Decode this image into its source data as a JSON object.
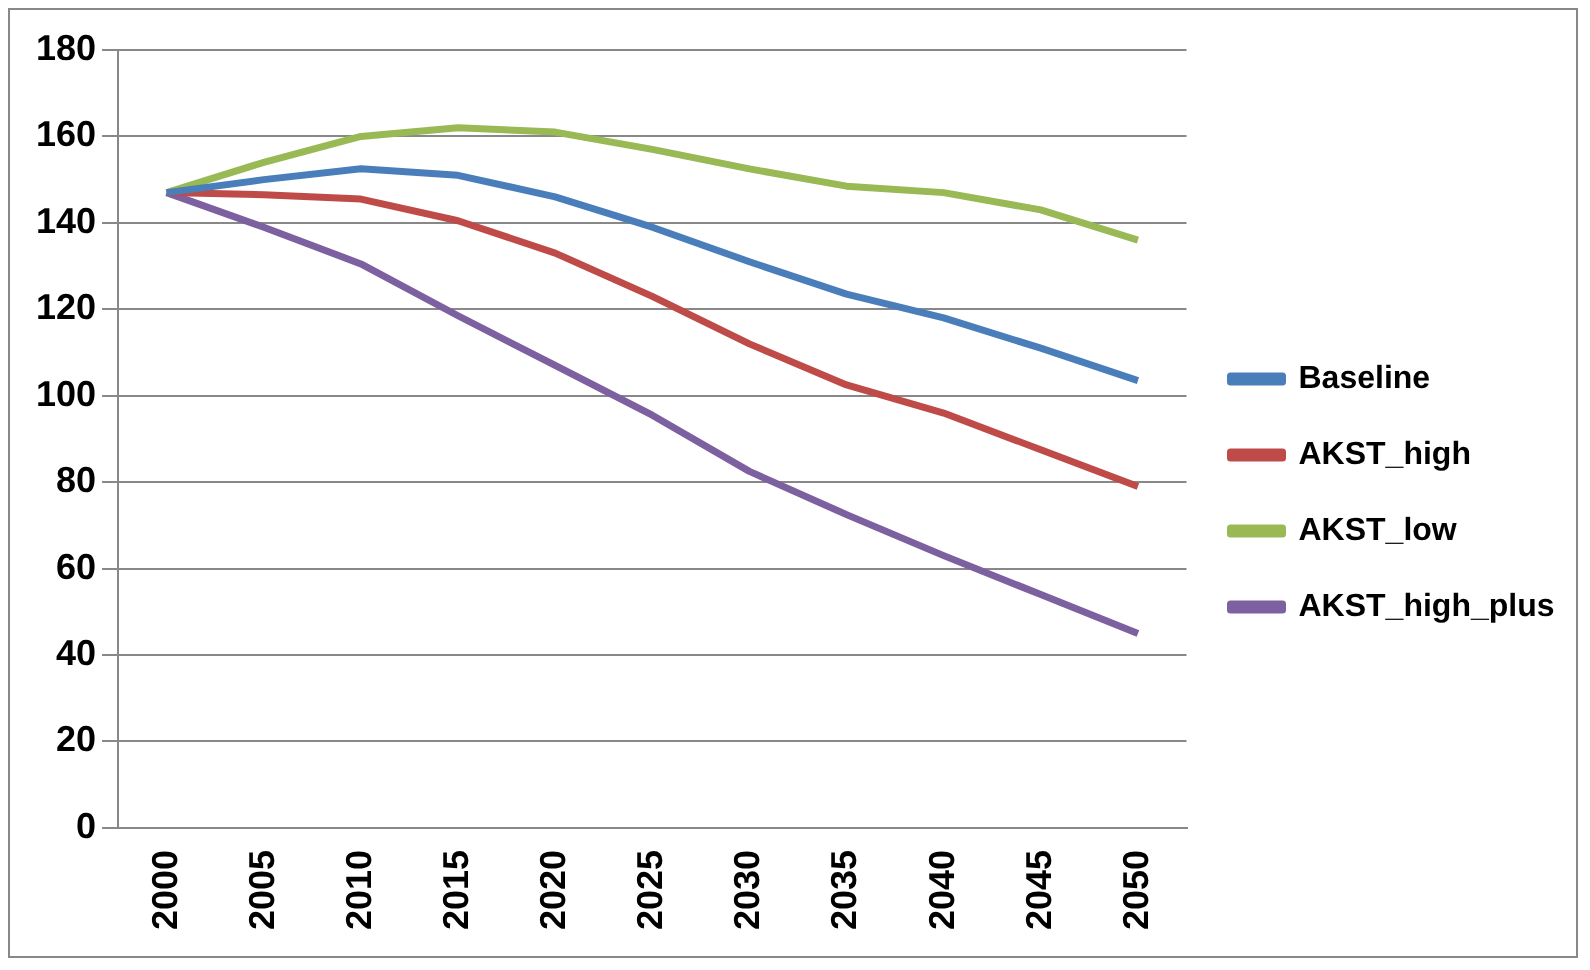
{
  "chart_data": {
    "type": "line",
    "categories": [
      "2000",
      "2005",
      "2010",
      "2015",
      "2020",
      "2025",
      "2030",
      "2035",
      "2040",
      "2045",
      "2050"
    ],
    "series": [
      {
        "name": "Baseline",
        "color": "#4a7ebb",
        "values": [
          147,
          150,
          152.5,
          151,
          146,
          139,
          131,
          123.5,
          118,
          111,
          103.5
        ]
      },
      {
        "name": "AKST_high",
        "color": "#be4b48",
        "values": [
          147,
          146.5,
          145.5,
          140.5,
          133,
          123,
          112,
          102.5,
          96,
          87.5,
          79
        ]
      },
      {
        "name": "AKST_low",
        "color": "#98b954",
        "values": [
          147,
          154,
          160,
          162,
          161,
          157,
          152.5,
          148.5,
          147,
          143,
          136
        ]
      },
      {
        "name": "AKST_high_plus",
        "color": "#7d60a0",
        "values": [
          147,
          139,
          130.5,
          118.5,
          107,
          95.5,
          82.5,
          72.5,
          63,
          54,
          45
        ]
      }
    ],
    "ylim": [
      0,
      180
    ],
    "yticks": [
      0,
      20,
      40,
      60,
      80,
      100,
      120,
      140,
      160,
      180
    ],
    "grid": "y",
    "legend": "right",
    "marker": "none",
    "line_style": "solid"
  }
}
